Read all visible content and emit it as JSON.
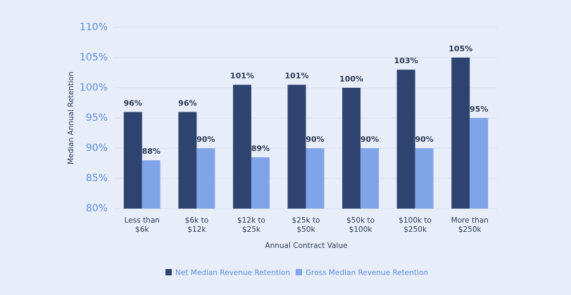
{
  "chart_data": {
    "type": "bar",
    "x_label": "Annual Contract Value",
    "y_label": "Median Annual Retention",
    "categories": [
      "Less than\n$6k",
      "$6k to\n$12k",
      "$12k to\n$25k",
      "$25k to\n$50k",
      "$50k to\n$100k",
      "$100k to\n$250k",
      "More than\n$250k"
    ],
    "series": [
      {
        "name": "Net Median Revenue Retention",
        "color": "#2e4370",
        "values": [
          96,
          96,
          100.5,
          100.5,
          100,
          103,
          105
        ],
        "value_labels": [
          "96%",
          "96%",
          "101%",
          "101%",
          "100%",
          "103%",
          "105%"
        ]
      },
      {
        "name": "Gross Median Revenue Retention",
        "color": "#7fa5e8",
        "values": [
          88,
          90,
          88.5,
          90,
          90,
          90,
          95
        ],
        "value_labels": [
          "88%",
          "90%",
          "89%",
          "90%",
          "90%",
          "90%",
          "95%"
        ]
      }
    ],
    "ylim": [
      80,
      110
    ],
    "yticks": [
      {
        "value": 80,
        "label": "80%"
      },
      {
        "value": 85,
        "label": "85%"
      },
      {
        "value": 90,
        "label": "90%"
      },
      {
        "value": 95,
        "label": "95%"
      },
      {
        "value": 100,
        "label": "100%"
      },
      {
        "value": 105,
        "label": "105%"
      },
      {
        "value": 110,
        "label": "110%"
      }
    ],
    "grid": true
  }
}
